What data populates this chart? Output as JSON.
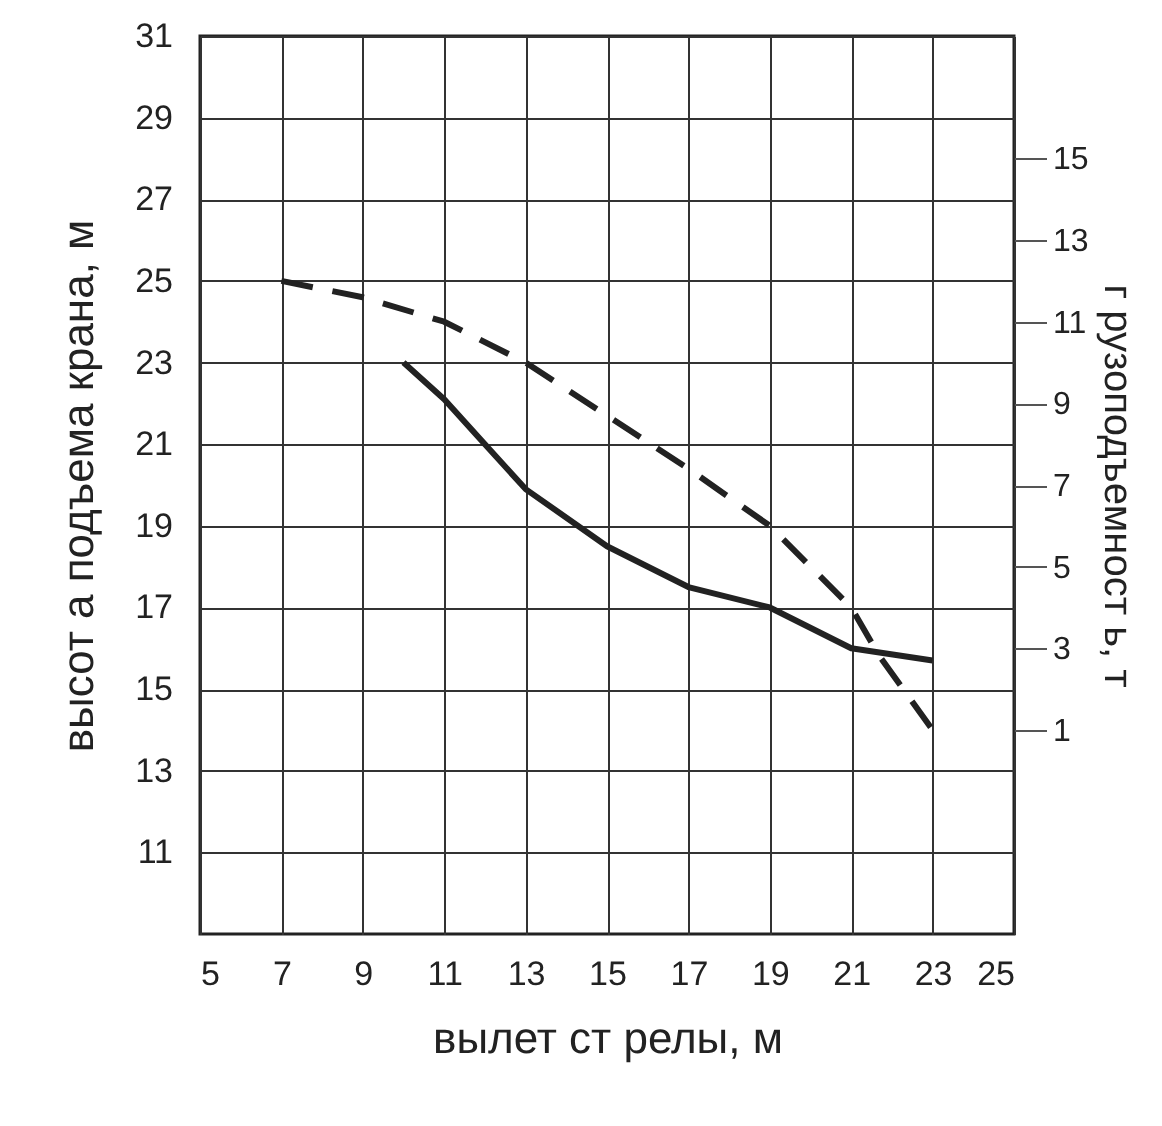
{
  "chart_data": {
    "type": "line",
    "xlabel": "вылет  ст релы, м",
    "ylabel": "высот а подъема крана, м",
    "y2label": "г рузоподъемност ь, т",
    "xlim": [
      5,
      25
    ],
    "xticks": [
      5,
      7,
      9,
      11,
      13,
      15,
      17,
      19,
      21,
      23,
      25
    ],
    "ylim": [
      9,
      31
    ],
    "yticks": [
      11,
      13,
      15,
      17,
      19,
      21,
      23,
      25,
      27,
      29,
      31
    ],
    "y2lim": [
      -4,
      18
    ],
    "y2ticks": [
      1,
      3,
      5,
      7,
      9,
      11,
      13,
      15
    ],
    "grid": true,
    "marker": "none",
    "series": [
      {
        "color": "#222222",
        "line_style": "dashed",
        "x": [
          7,
          9,
          11,
          13,
          15,
          17,
          19,
          21,
          21.7,
          23
        ],
        "values": [
          25,
          24.6,
          24,
          23,
          21.7,
          20.4,
          19,
          17,
          15.8,
          14
        ]
      },
      {
        "color": "#222222",
        "line_style": "solid",
        "axis": "y2",
        "x": [
          10,
          11,
          12,
          13,
          15,
          17,
          19,
          21,
          23
        ],
        "values": [
          10,
          9.1,
          8,
          6.9,
          5.5,
          4.5,
          4,
          3,
          2.7
        ]
      }
    ]
  }
}
